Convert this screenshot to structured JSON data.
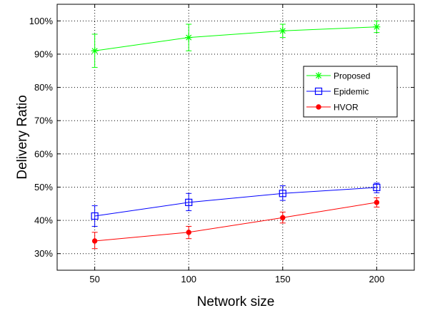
{
  "chart_data": {
    "type": "line",
    "title": "",
    "xlabel": "Network size",
    "ylabel": "Delivery Ratio",
    "x": [
      50,
      100,
      150,
      200
    ],
    "xlim": [
      30,
      220
    ],
    "ylim": [
      25,
      105
    ],
    "xticks": [
      50,
      100,
      150,
      200
    ],
    "xtick_labels": [
      "50",
      "100",
      "150",
      "200"
    ],
    "yticks": [
      30,
      40,
      50,
      60,
      70,
      80,
      90,
      100
    ],
    "ytick_labels": [
      "30%",
      "40%",
      "50%",
      "60%",
      "70%",
      "80%",
      "90%",
      "100%"
    ],
    "grid": true,
    "legend_position": "top-right",
    "series": [
      {
        "name": "Proposed",
        "values": [
          91,
          95,
          97,
          98.2
        ],
        "err_low": [
          86,
          91,
          95,
          96.5
        ],
        "err_high": [
          96,
          99,
          99,
          100
        ],
        "color": "#00ff00",
        "marker": "star"
      },
      {
        "name": "Epidemic",
        "values": [
          41.3,
          45.4,
          48.1,
          49.9
        ],
        "err_low": [
          38.2,
          42.9,
          46,
          48.3
        ],
        "err_high": [
          44.4,
          48.1,
          50.4,
          51.2
        ],
        "color": "#0000ff",
        "marker": "square"
      },
      {
        "name": "HVOR",
        "values": [
          33.8,
          36.4,
          40.8,
          45.4
        ],
        "err_low": [
          31.5,
          34.5,
          39.2,
          44
        ],
        "err_high": [
          36.4,
          38.2,
          42.5,
          46.8
        ],
        "color": "#ff0000",
        "marker": "dot"
      }
    ]
  }
}
